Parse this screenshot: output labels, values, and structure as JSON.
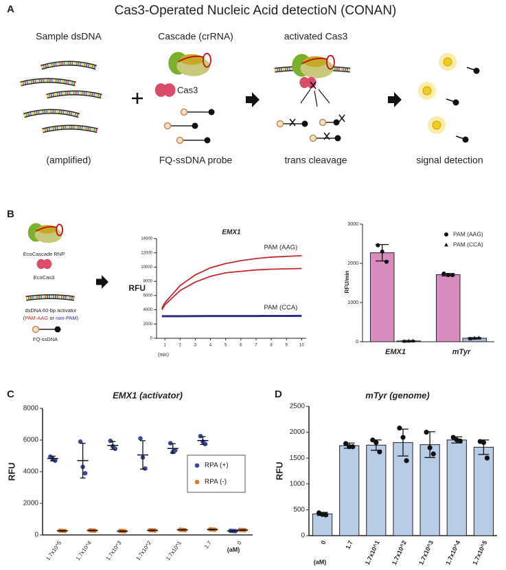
{
  "panel_labels": [
    "A",
    "B",
    "C",
    "D"
  ],
  "panel_a": {
    "title": "Cas3-Operated Nucleic Acid detectioN (CONAN)",
    "sample": "Sample dsDNA",
    "cascade": "Cascade (crRNA)",
    "activated": "activated Cas3",
    "cas3": "Cas3",
    "amplified": "(amplified)",
    "probe": "FQ-ssDNA probe",
    "cleavage": "trans cleavage",
    "signal": "signal detection"
  },
  "panel_b": {
    "rnp": "EcoCascade RNP",
    "cas3": "EcoCas3",
    "activator": "dsDNA 60-bp activator",
    "activator_note": [
      "(",
      "PAM-AAG",
      " or ",
      "non-PAM",
      ")"
    ],
    "probe": "FQ-ssDNA"
  },
  "chart_data": [
    {
      "type": "line",
      "title": "EMX1",
      "ylabel": "RFU",
      "xlabel": "(min)",
      "x": [
        0.8,
        1,
        2,
        3,
        4,
        5,
        6,
        7,
        8,
        9,
        10
      ],
      "xlim": [
        0.45,
        10.3
      ],
      "xticks": [
        1,
        2,
        3,
        4,
        5,
        6,
        7,
        8,
        9,
        10
      ],
      "ylim": [
        0,
        14000
      ],
      "yticks": [
        0,
        2000,
        4000,
        6000,
        8000,
        10000,
        12000,
        14000
      ],
      "series": [
        {
          "name": "PAM (AAG)",
          "color": "#c0282d",
          "values": [
            4200,
            5000,
            7400,
            8900,
            9900,
            10500,
            10900,
            11200,
            11400,
            11500,
            11600
          ]
        },
        {
          "color": "#c0282d",
          "values": [
            4000,
            4700,
            6700,
            7900,
            8700,
            9200,
            9400,
            9600,
            9700,
            9750,
            9800
          ]
        },
        {
          "name": "PAM (CCA)",
          "color": "#2b2b8c",
          "values": [
            3100,
            3100,
            3100,
            3110,
            3120,
            3120,
            3130,
            3130,
            3140,
            3140,
            3150
          ]
        }
      ]
    },
    {
      "type": "bar",
      "ylabel": "RFU/min",
      "categories": [
        "EMX1",
        "mTyr"
      ],
      "ylim": [
        0,
        3000
      ],
      "yticks": [
        0,
        1000,
        2000,
        3000
      ],
      "series": [
        {
          "name": "PAM (AAG)",
          "color": "#d98bbf",
          "text_color": "#c0282d",
          "marker": "circle",
          "values": [
            2270,
            1710
          ],
          "errors": [
            210,
            30
          ],
          "points": [
            [
              2460,
              2300,
              2040
            ],
            [
              1740,
              1700,
              1700
            ]
          ]
        },
        {
          "name": "PAM (CCA)",
          "color": "#a9b8d8",
          "text_color": "#2b2b8c",
          "marker": "triangle",
          "values": [
            20,
            90
          ],
          "errors": [
            10,
            15
          ],
          "points": [
            [
              15,
              20,
              25
            ],
            [
              80,
              95,
              100
            ]
          ]
        }
      ]
    },
    {
      "type": "dot",
      "title": "EMX1 (activator)",
      "ylabel": "RFU",
      "xlabel": "(aM)",
      "categories": [
        "1.7x10^5",
        "1.7x10^4",
        "1.7x10^3",
        "1.7x10^2",
        "1.7x10^1",
        "1.7",
        "0"
      ],
      "ylim": [
        0,
        8000
      ],
      "yticks": [
        0,
        2000,
        4000,
        6000,
        8000
      ],
      "series": [
        {
          "name": "RPA (+)",
          "color": "#3a4aa0",
          "values": [
            4830,
            4700,
            5660,
            5060,
            5470,
            5970,
            250
          ],
          "errors": [
            150,
            1100,
            250,
            900,
            300,
            250,
            20
          ],
          "points": [
            [
              4950,
              4800,
              4700
            ],
            [
              5900,
              4300,
              3900
            ],
            [
              5950,
              5600,
              5450
            ],
            [
              6100,
              4900,
              4200
            ],
            [
              5800,
              5250,
              5350
            ],
            [
              6250,
              5900,
              5750
            ],
            [
              260,
              250,
              240
            ]
          ]
        },
        {
          "name": "RPA (-)",
          "color": "#e07b30",
          "values": [
            260,
            280,
            240,
            290,
            320,
            340,
            310
          ],
          "errors": [
            20,
            20,
            20,
            20,
            20,
            20,
            20
          ],
          "points": [
            [
              270,
              260,
              250
            ],
            [
              290,
              280,
              270
            ],
            [
              250,
              240,
              230
            ],
            [
              300,
              290,
              280
            ],
            [
              330,
              320,
              310
            ],
            [
              350,
              340,
              330
            ],
            [
              320,
              310,
              300
            ]
          ]
        }
      ]
    },
    {
      "type": "bar",
      "title": "mTyr (genome)",
      "ylabel": "RFU",
      "xlabel": "(aM)",
      "categories": [
        "0",
        "1.7",
        "1.7x10^1",
        "1.7x10^2",
        "1.7x10^3",
        "1.7x10^4",
        "1.7x10^5"
      ],
      "ylim": [
        0,
        2500
      ],
      "yticks": [
        0,
        500,
        1000,
        1500,
        2000,
        2500
      ],
      "series": [
        {
          "color": "#b8cce8",
          "marker": "circle",
          "values": [
            420,
            1740,
            1750,
            1800,
            1760,
            1850,
            1710
          ],
          "errors": [
            30,
            50,
            100,
            260,
            250,
            60,
            140
          ],
          "points": [
            [
              440,
              410,
              400
            ],
            [
              1780,
              1720,
              1720
            ],
            [
              1850,
              1800,
              1620
            ],
            [
              2080,
              1900,
              1450
            ],
            [
              2000,
              1700,
              1580
            ],
            [
              1900,
              1850,
              1830
            ],
            [
              1820,
              1800,
              1500
            ]
          ]
        }
      ]
    }
  ]
}
